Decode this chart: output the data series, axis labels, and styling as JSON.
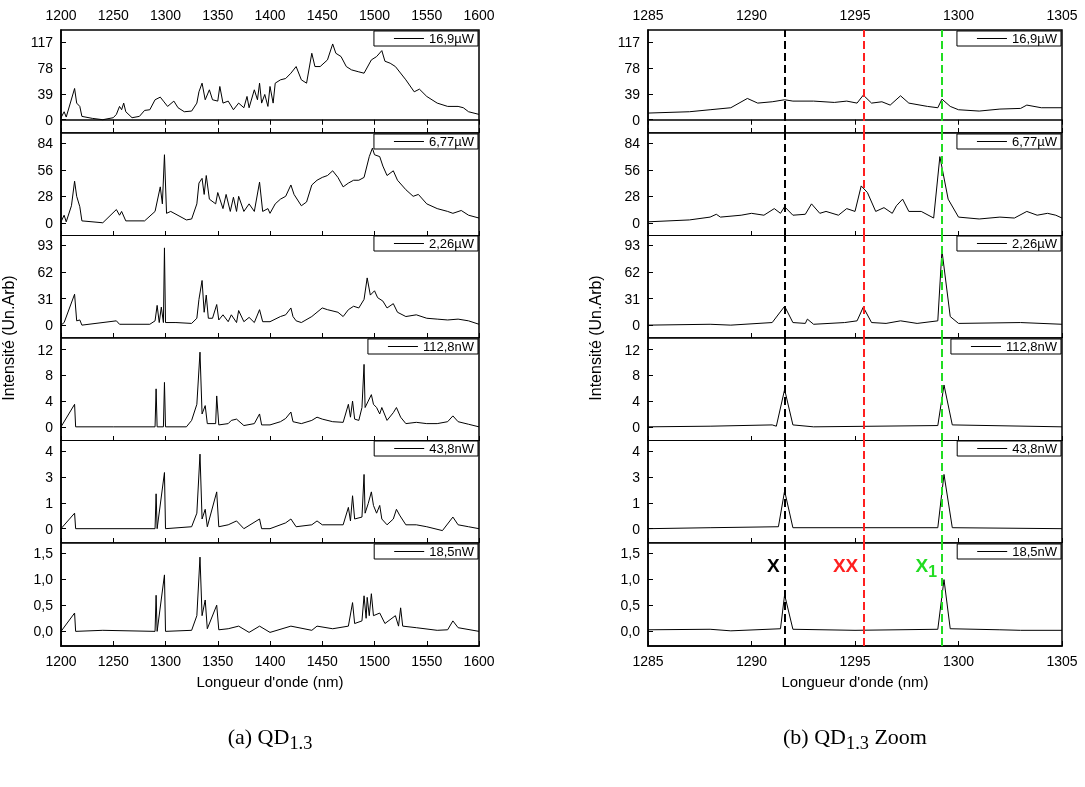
{
  "chart_data": [
    {
      "type": "line",
      "title": "(a) QD$_{1.3}$",
      "legend": "top right",
      "tick_labels": "y",
      "xlim": [
        1200,
        1600
      ],
      "xticks": [
        1200,
        1250,
        1300,
        1350,
        1400,
        1450,
        1500,
        1550,
        1600
      ],
      "x2lim": [
        1200,
        1600
      ],
      "x2ticks": [
        1200,
        1250,
        1300,
        1350,
        1400,
        1450,
        1500,
        1550,
        1600
      ],
      "ylim": [
        -20,
        135
      ],
      "yticks": [
        0,
        39,
        78,
        117
      ],
      "x": [
        1200,
        1203,
        1205,
        1213,
        1215,
        1218,
        1220,
        1230,
        1240,
        1250,
        1253,
        1256,
        1258,
        1260,
        1262,
        1268,
        1275,
        1280,
        1285,
        1290,
        1295,
        1298,
        1302,
        1308,
        1312,
        1318,
        1325,
        1330,
        1332,
        1335,
        1338,
        1342,
        1345,
        1350,
        1352,
        1355,
        1360,
        1365,
        1370,
        1375,
        1378,
        1380,
        1385,
        1388,
        1390,
        1392,
        1395,
        1398,
        1400,
        1403,
        1405,
        1410,
        1415,
        1420,
        1425,
        1430,
        1435,
        1440,
        1443,
        1448,
        1455,
        1460,
        1463,
        1468,
        1473,
        1478,
        1485,
        1490,
        1497,
        1502,
        1507,
        1510,
        1515,
        1520,
        1530,
        1538,
        1543,
        1550,
        1560,
        1570,
        1580,
        1585,
        1590,
        1600
      ],
      "series": [
        {
          "name": "16,9µW",
          "color": "#000000",
          "values": [
            3,
            12,
            4,
            47,
            25,
            20,
            5,
            2,
            0,
            3,
            8,
            20,
            15,
            25,
            12,
            3,
            5,
            14,
            15,
            30,
            34,
            28,
            20,
            28,
            18,
            12,
            13,
            25,
            42,
            55,
            30,
            45,
            30,
            28,
            50,
            25,
            28,
            15,
            25,
            18,
            35,
            18,
            45,
            30,
            55,
            25,
            38,
            20,
            50,
            25,
            55,
            60,
            62,
            70,
            80,
            60,
            55,
            100,
            80,
            80,
            90,
            114,
            100,
            95,
            80,
            75,
            72,
            70,
            90,
            95,
            104,
            88,
            85,
            80,
            60,
            42,
            46,
            35,
            25,
            20,
            20,
            18,
            12,
            8
          ]
        }
      ]
    },
    {
      "type": "line",
      "legend": "top right",
      "tick_labels": "y",
      "xlim": [
        1200,
        1600
      ],
      "xticks": [
        1200,
        1250,
        1300,
        1350,
        1400,
        1450,
        1500,
        1550,
        1600
      ],
      "ylim": [
        -14,
        95
      ],
      "yticks": [
        0,
        28,
        56,
        84
      ],
      "x": [
        1200,
        1203,
        1205,
        1210,
        1213,
        1215,
        1218,
        1220,
        1240,
        1253,
        1256,
        1258,
        1262,
        1280,
        1290,
        1295,
        1297,
        1299,
        1301,
        1305,
        1320,
        1325,
        1330,
        1332,
        1335,
        1337,
        1339,
        1342,
        1348,
        1350,
        1355,
        1358,
        1362,
        1365,
        1368,
        1370,
        1375,
        1380,
        1385,
        1390,
        1393,
        1398,
        1400,
        1405,
        1410,
        1415,
        1420,
        1423,
        1430,
        1435,
        1440,
        1445,
        1450,
        1455,
        1460,
        1465,
        1470,
        1475,
        1480,
        1485,
        1490,
        1495,
        1498,
        1500,
        1505,
        1508,
        1512,
        1518,
        1522,
        1530,
        1537,
        1542,
        1550,
        1560,
        1570,
        1575,
        1583,
        1590,
        1600
      ],
      "series": [
        {
          "name": "6,77µW",
          "color": "#000000",
          "values": [
            1,
            8,
            1,
            18,
            44,
            28,
            17,
            2,
            0,
            14,
            8,
            12,
            2,
            2,
            12,
            38,
            20,
            72,
            10,
            12,
            3,
            4,
            20,
            42,
            47,
            30,
            50,
            25,
            20,
            32,
            15,
            30,
            12,
            27,
            12,
            28,
            12,
            20,
            12,
            43,
            12,
            15,
            10,
            20,
            25,
            28,
            40,
            30,
            18,
            22,
            40,
            45,
            48,
            50,
            55,
            48,
            38,
            42,
            45,
            45,
            48,
            70,
            79,
            72,
            70,
            60,
            50,
            55,
            45,
            35,
            28,
            30,
            20,
            15,
            12,
            10,
            13,
            8,
            5
          ]
        }
      ]
    },
    {
      "type": "line",
      "legend": "top right",
      "tick_labels": "y",
      "xlim": [
        1200,
        1600
      ],
      "xticks": [
        1200,
        1250,
        1300,
        1350,
        1400,
        1450,
        1500,
        1550,
        1600
      ],
      "ylim": [
        -15,
        105
      ],
      "yticks": [
        0,
        31,
        62,
        93
      ],
      "x": [
        1200,
        1203,
        1213,
        1215,
        1218,
        1220,
        1253,
        1256,
        1285,
        1290,
        1292,
        1294,
        1296,
        1298,
        1299,
        1300,
        1310,
        1325,
        1330,
        1332,
        1335,
        1337,
        1339,
        1341,
        1345,
        1349,
        1351,
        1355,
        1360,
        1363,
        1368,
        1370,
        1375,
        1380,
        1385,
        1390,
        1393,
        1400,
        1410,
        1415,
        1420,
        1422,
        1425,
        1430,
        1440,
        1450,
        1455,
        1465,
        1470,
        1475,
        1480,
        1485,
        1490,
        1493,
        1496,
        1500,
        1503,
        1508,
        1512,
        1518,
        1522,
        1530,
        1540,
        1550,
        1560,
        1570,
        1580,
        1590,
        1600
      ],
      "series": [
        {
          "name": "2,26µW",
          "color": "#000000",
          "values": [
            0,
            3,
            36,
            5,
            6,
            0,
            5,
            1,
            1,
            5,
            23,
            3,
            21,
            3,
            90,
            3,
            3,
            2,
            8,
            30,
            52,
            15,
            35,
            8,
            8,
            24,
            6,
            12,
            4,
            12,
            3,
            17,
            4,
            9,
            3,
            18,
            4,
            4,
            10,
            12,
            20,
            10,
            5,
            3,
            10,
            20,
            18,
            15,
            10,
            18,
            22,
            20,
            30,
            55,
            35,
            40,
            32,
            28,
            20,
            25,
            15,
            10,
            12,
            8,
            7,
            6,
            7,
            5,
            1
          ]
        }
      ]
    },
    {
      "type": "line",
      "legend": "top right",
      "tick_labels": "y",
      "xlim": [
        1200,
        1600
      ],
      "xticks": [
        1200,
        1250,
        1300,
        1350,
        1400,
        1450,
        1500,
        1550,
        1600
      ],
      "ylim": [
        -2.2,
        13.8
      ],
      "yticks": [
        0,
        4,
        8,
        12
      ],
      "x": [
        1200,
        1213,
        1214,
        1250,
        1290,
        1291,
        1292,
        1298,
        1299,
        1300,
        1320,
        1325,
        1330,
        1333,
        1335,
        1338,
        1340,
        1348,
        1349,
        1351,
        1360,
        1363,
        1368,
        1375,
        1385,
        1390,
        1392,
        1400,
        1410,
        1415,
        1420,
        1422,
        1430,
        1440,
        1445,
        1450,
        1460,
        1470,
        1475,
        1477,
        1479,
        1481,
        1485,
        1488,
        1490,
        1491,
        1494,
        1497,
        1499,
        1502,
        1505,
        1507,
        1512,
        1518,
        1521,
        1525,
        1530,
        1540,
        1550,
        1560,
        1570,
        1575,
        1580,
        1590,
        1600
      ],
      "series": [
        {
          "name": "112,8nW",
          "color": "#000000",
          "values": [
            0,
            3.5,
            0,
            0,
            0,
            5.9,
            0,
            0,
            6.9,
            0,
            0,
            1,
            3.5,
            11.6,
            2,
            3.3,
            0.5,
            0.5,
            4.8,
            0.3,
            0.5,
            1,
            1.2,
            0.2,
            0.5,
            2,
            0.3,
            0.3,
            0.8,
            1.3,
            2.3,
            0.8,
            0.5,
            1,
            1.5,
            1.2,
            0.8,
            0.7,
            3.5,
            1.5,
            4,
            1.2,
            1,
            3,
            9.7,
            3,
            4,
            5,
            3.5,
            3,
            2,
            3,
            1,
            2.2,
            3,
            1.5,
            0.5,
            0.7,
            0.5,
            0.5,
            0.8,
            1.7,
            0.8,
            0.4,
            0
          ]
        }
      ]
    },
    {
      "type": "line",
      "legend": "top right",
      "tick_labels": "y",
      "xlim": [
        1200,
        1600
      ],
      "xticks": [
        1200,
        1250,
        1300,
        1350,
        1400,
        1450,
        1500,
        1550,
        1600
      ],
      "ylim": [
        -0.74,
        4.58
      ],
      "yticks": [
        0,
        {
          "value": 1.33,
          "label": "1"
        },
        {
          "value": 2.67,
          "label": "3"
        },
        4
      ],
      "x": [
        1200,
        1213,
        1214,
        1290,
        1291,
        1292,
        1299,
        1300,
        1325,
        1330,
        1333,
        1335,
        1338,
        1340,
        1349,
        1351,
        1360,
        1368,
        1375,
        1390,
        1392,
        1400,
        1415,
        1420,
        1425,
        1440,
        1445,
        1450,
        1470,
        1475,
        1477,
        1479,
        1481,
        1488,
        1490,
        1491,
        1494,
        1497,
        1499,
        1502,
        1505,
        1507,
        1512,
        1518,
        1521,
        1524,
        1530,
        1540,
        1550,
        1565,
        1575,
        1580,
        1590,
        1600
      ],
      "series": [
        {
          "name": "43,8nW",
          "color": "#000000",
          "values": [
            0,
            0.8,
            0,
            0,
            1.8,
            0,
            2.9,
            0,
            0.1,
            0.8,
            3.85,
            0.5,
            1,
            0.1,
            1.9,
            0.1,
            0.2,
            0.4,
            0,
            0.5,
            0,
            0,
            0.3,
            0.5,
            0.1,
            0.2,
            0.4,
            0.2,
            0.2,
            1.1,
            0.4,
            1.7,
            0.5,
            0.6,
            2.8,
            0.8,
            1.3,
            1.9,
            1.2,
            0.8,
            1.2,
            0.5,
            0.2,
            0.5,
            1,
            0.7,
            0.2,
            0.2,
            0.1,
            -0.1,
            0.6,
            0.2,
            0.1,
            0
          ]
        }
      ]
    },
    {
      "type": "line",
      "legend": "top right",
      "xlabel": "Longueur d'onde (nm)",
      "xlim": [
        1200,
        1600
      ],
      "xticks": [
        1200,
        1250,
        1300,
        1350,
        1400,
        1450,
        1500,
        1550,
        1600
      ],
      "ylim": [
        -0.28,
        1.69
      ],
      "yticks": [
        {
          "value": 0,
          "label": "0,0"
        },
        {
          "value": 0.5,
          "label": "0,5"
        },
        {
          "value": 1,
          "label": "1,0"
        },
        {
          "value": 1.5,
          "label": "1,5"
        }
      ],
      "x": [
        1200,
        1213,
        1214,
        1240,
        1290,
        1291,
        1292,
        1299,
        1300,
        1325,
        1330,
        1333,
        1335,
        1338,
        1340,
        1349,
        1351,
        1360,
        1370,
        1380,
        1390,
        1400,
        1420,
        1440,
        1445,
        1460,
        1475,
        1479,
        1481,
        1488,
        1490,
        1492,
        1493,
        1495,
        1497,
        1499,
        1505,
        1510,
        1520,
        1523,
        1525,
        1527,
        1540,
        1560,
        1570,
        1575,
        1580,
        1600
      ],
      "series": [
        {
          "name": "18,5nW",
          "color": "#000000",
          "values": [
            0,
            0.35,
            0,
            0.02,
            0,
            0.69,
            0,
            1.08,
            0,
            0.02,
            0.3,
            1.42,
            0.3,
            0.6,
            0.05,
            0.5,
            0.03,
            0.05,
            0.1,
            -0.02,
            0.1,
            -0.02,
            0.1,
            0.02,
            0.1,
            0.05,
            0.1,
            0.55,
            0.15,
            0.2,
            0.68,
            0.25,
            0.65,
            0.3,
            0.72,
            0.3,
            0.35,
            0.15,
            0.3,
            0.1,
            0.45,
            0.1,
            0.07,
            0.02,
            0.03,
            0.2,
            0.07,
            0
          ]
        }
      ]
    },
    {
      "type": "line",
      "title": "(b) QD$_{1.3}$ Zoom",
      "legend": "top right",
      "tick_labels": "y",
      "xlim": [
        1285,
        1305
      ],
      "xticks": [
        1285,
        1290,
        1295,
        1300,
        1305
      ],
      "x2lim": [
        1285,
        1305
      ],
      "x2ticks": [
        1285,
        1290,
        1295,
        1300,
        1305
      ],
      "ylim": [
        -20,
        135
      ],
      "yticks": [
        0,
        39,
        78,
        117
      ],
      "ref_lines": [
        {
          "axis": "x",
          "value": 1291.6,
          "color": "#000000",
          "line_style": "dashed"
        },
        {
          "axis": "x",
          "value": 1295.4,
          "color": "#ff2020",
          "line_style": "dashed"
        },
        {
          "axis": "x",
          "value": 1299.2,
          "color": "#22dd22",
          "line_style": "dashed"
        }
      ],
      "x": [
        1285,
        1287,
        1288,
        1289,
        1289.8,
        1290.3,
        1291,
        1291.6,
        1292,
        1293,
        1294,
        1294.6,
        1295.1,
        1295.4,
        1295.8,
        1296.3,
        1296.7,
        1297.2,
        1297.6,
        1298.5,
        1299,
        1299.2,
        1299.6,
        1300,
        1301,
        1302,
        1303,
        1303.3,
        1304,
        1305
      ],
      "series": [
        {
          "name": "16,9µW",
          "color": "#000000",
          "values": [
            10,
            12,
            15,
            18,
            32,
            25,
            27,
            30,
            28,
            28,
            26,
            28,
            25,
            37,
            25,
            27,
            22,
            36,
            25,
            20,
            18,
            31,
            20,
            15,
            13,
            16,
            17,
            22,
            18,
            18
          ]
        }
      ]
    },
    {
      "type": "line",
      "legend": "top right",
      "tick_labels": "y",
      "xlim": [
        1285,
        1305
      ],
      "xticks": [
        1285,
        1290,
        1295,
        1300,
        1305
      ],
      "ylim": [
        -14,
        95
      ],
      "yticks": [
        0,
        28,
        56,
        84
      ],
      "ref_lines": [
        {
          "axis": "x",
          "value": 1291.6,
          "color": "#000000",
          "line_style": "dashed"
        },
        {
          "axis": "x",
          "value": 1295.4,
          "color": "#ff2020",
          "line_style": "dashed"
        },
        {
          "axis": "x",
          "value": 1299.2,
          "color": "#22dd22",
          "line_style": "dashed"
        }
      ],
      "x": [
        1285,
        1287,
        1288,
        1288.3,
        1288.5,
        1289.5,
        1290,
        1290.6,
        1291.1,
        1291.4,
        1291.6,
        1292,
        1292.6,
        1292.9,
        1293.3,
        1293.6,
        1294.2,
        1294.6,
        1295,
        1295.3,
        1295.6,
        1296,
        1296.4,
        1296.8,
        1297,
        1297.3,
        1297.6,
        1298.2,
        1298.8,
        1299.1,
        1299.5,
        1300,
        1301,
        1302,
        1302.7,
        1303.3,
        1303.8,
        1304.3,
        1304.7,
        1305
      ],
      "series": [
        {
          "name": "6,77µW",
          "color": "#000000",
          "values": [
            1,
            3,
            6,
            9,
            6,
            8,
            10,
            8,
            15,
            10,
            17,
            8,
            9,
            20,
            10,
            12,
            8,
            15,
            12,
            39,
            32,
            12,
            16,
            10,
            18,
            25,
            12,
            12,
            5,
            70,
            25,
            6,
            4,
            6,
            5,
            12,
            8,
            10,
            8,
            5
          ]
        }
      ]
    },
    {
      "type": "line",
      "legend": "top right",
      "tick_labels": "y",
      "xlim": [
        1285,
        1305
      ],
      "xticks": [
        1285,
        1290,
        1295,
        1300,
        1305
      ],
      "ylim": [
        -15,
        105
      ],
      "yticks": [
        0,
        31,
        62,
        93
      ],
      "ref_lines": [
        {
          "axis": "x",
          "value": 1291.6,
          "color": "#000000",
          "line_style": "dashed"
        },
        {
          "axis": "x",
          "value": 1295.4,
          "color": "#ff2020",
          "line_style": "dashed"
        },
        {
          "axis": "x",
          "value": 1299.2,
          "color": "#22dd22",
          "line_style": "dashed"
        }
      ],
      "x": [
        1285,
        1288,
        1289,
        1291,
        1291.6,
        1292,
        1292.6,
        1292.7,
        1293,
        1294.5,
        1295.1,
        1295.4,
        1295.8,
        1296.5,
        1297.2,
        1298,
        1299,
        1299.2,
        1299.6,
        1300,
        1303,
        1305
      ],
      "series": [
        {
          "name": "2,26µW",
          "color": "#000000",
          "values": [
            0,
            1,
            0,
            3,
            22,
            3,
            2,
            7,
            1,
            3,
            5,
            21,
            3,
            2,
            5,
            2,
            5,
            87,
            10,
            2,
            3,
            1
          ]
        }
      ]
    },
    {
      "type": "line",
      "legend": "top right",
      "tick_labels": "y",
      "xlim": [
        1285,
        1305
      ],
      "xticks": [
        1285,
        1290,
        1295,
        1300,
        1305
      ],
      "ylim": [
        -2.2,
        13.8
      ],
      "yticks": [
        0,
        4,
        8,
        12
      ],
      "ref_lines": [
        {
          "axis": "x",
          "value": 1291.6,
          "color": "#000000",
          "line_style": "dashed"
        },
        {
          "axis": "x",
          "value": 1295.4,
          "color": "#ff2020",
          "line_style": "dashed"
        },
        {
          "axis": "x",
          "value": 1299.2,
          "color": "#22dd22",
          "line_style": "dashed"
        }
      ],
      "x": [
        1285,
        1288,
        1291,
        1291.2,
        1291.6,
        1292,
        1293,
        1299,
        1299.3,
        1299.7,
        1305
      ],
      "series": [
        {
          "name": "112,8nW",
          "color": "#000000",
          "values": [
            0,
            0.1,
            0.3,
            0.1,
            5.8,
            0.3,
            0,
            0.2,
            6.5,
            0.3,
            0
          ]
        }
      ]
    },
    {
      "type": "line",
      "legend": "top right",
      "tick_labels": "y",
      "xlim": [
        1285,
        1305
      ],
      "xticks": [
        1285,
        1290,
        1295,
        1300,
        1305
      ],
      "ylim": [
        -0.74,
        4.58
      ],
      "yticks": [
        0,
        {
          "value": 1.33,
          "label": "1"
        },
        {
          "value": 2.67,
          "label": "3"
        },
        4
      ],
      "ref_lines": [
        {
          "axis": "x",
          "value": 1291.6,
          "color": "#000000",
          "line_style": "dashed"
        },
        {
          "axis": "x",
          "value": 1295.4,
          "color": "#ff2020",
          "line_style": "dashed"
        },
        {
          "axis": "x",
          "value": 1299.2,
          "color": "#22dd22",
          "line_style": "dashed"
        }
      ],
      "x": [
        1285,
        1288,
        1291.3,
        1291.6,
        1292,
        1299,
        1299.3,
        1299.7,
        1305
      ],
      "series": [
        {
          "name": "43,8nW",
          "color": "#000000",
          "values": [
            0,
            0.05,
            0.1,
            1.95,
            0.05,
            0.05,
            2.8,
            0.05,
            0
          ]
        }
      ]
    },
    {
      "type": "line",
      "legend": "top right",
      "xlabel": "Longueur d'onde (nm)",
      "xlim": [
        1285,
        1305
      ],
      "xticks": [
        1285,
        1290,
        1295,
        1300,
        1305
      ],
      "ylim": [
        -0.28,
        1.69
      ],
      "yticks": [
        {
          "value": 0,
          "label": "0,0"
        },
        {
          "value": 0.5,
          "label": "0,5"
        },
        {
          "value": 1,
          "label": "1,0"
        },
        {
          "value": 1.5,
          "label": "1,5"
        }
      ],
      "ref_lines": [
        {
          "axis": "x",
          "value": 1291.6,
          "color": "#000000",
          "line_style": "dashed",
          "label": "X"
        },
        {
          "axis": "x",
          "value": 1295.4,
          "color": "#ff2020",
          "line_style": "dashed",
          "label": "XX"
        },
        {
          "axis": "x",
          "value": 1299.2,
          "color": "#22dd22",
          "line_style": "dashed",
          "label": "X$_{1}$"
        }
      ],
      "x": [
        1285,
        1288,
        1289,
        1291.4,
        1291.6,
        1292,
        1295,
        1299,
        1299.3,
        1299.6,
        1302,
        1303,
        1305
      ],
      "series": [
        {
          "name": "18,5nW",
          "color": "#000000",
          "values": [
            0.03,
            0.04,
            0.01,
            0.05,
            0.7,
            0.04,
            0.02,
            0.04,
            0.99,
            0.05,
            0.03,
            0.02,
            0.02
          ]
        }
      ]
    },
    {
      "type": "other",
      "ylabel": "Intensité (Un.Arb)"
    },
    {
      "type": "other",
      "ylabel": "Intensité (Un.Arb)"
    }
  ]
}
